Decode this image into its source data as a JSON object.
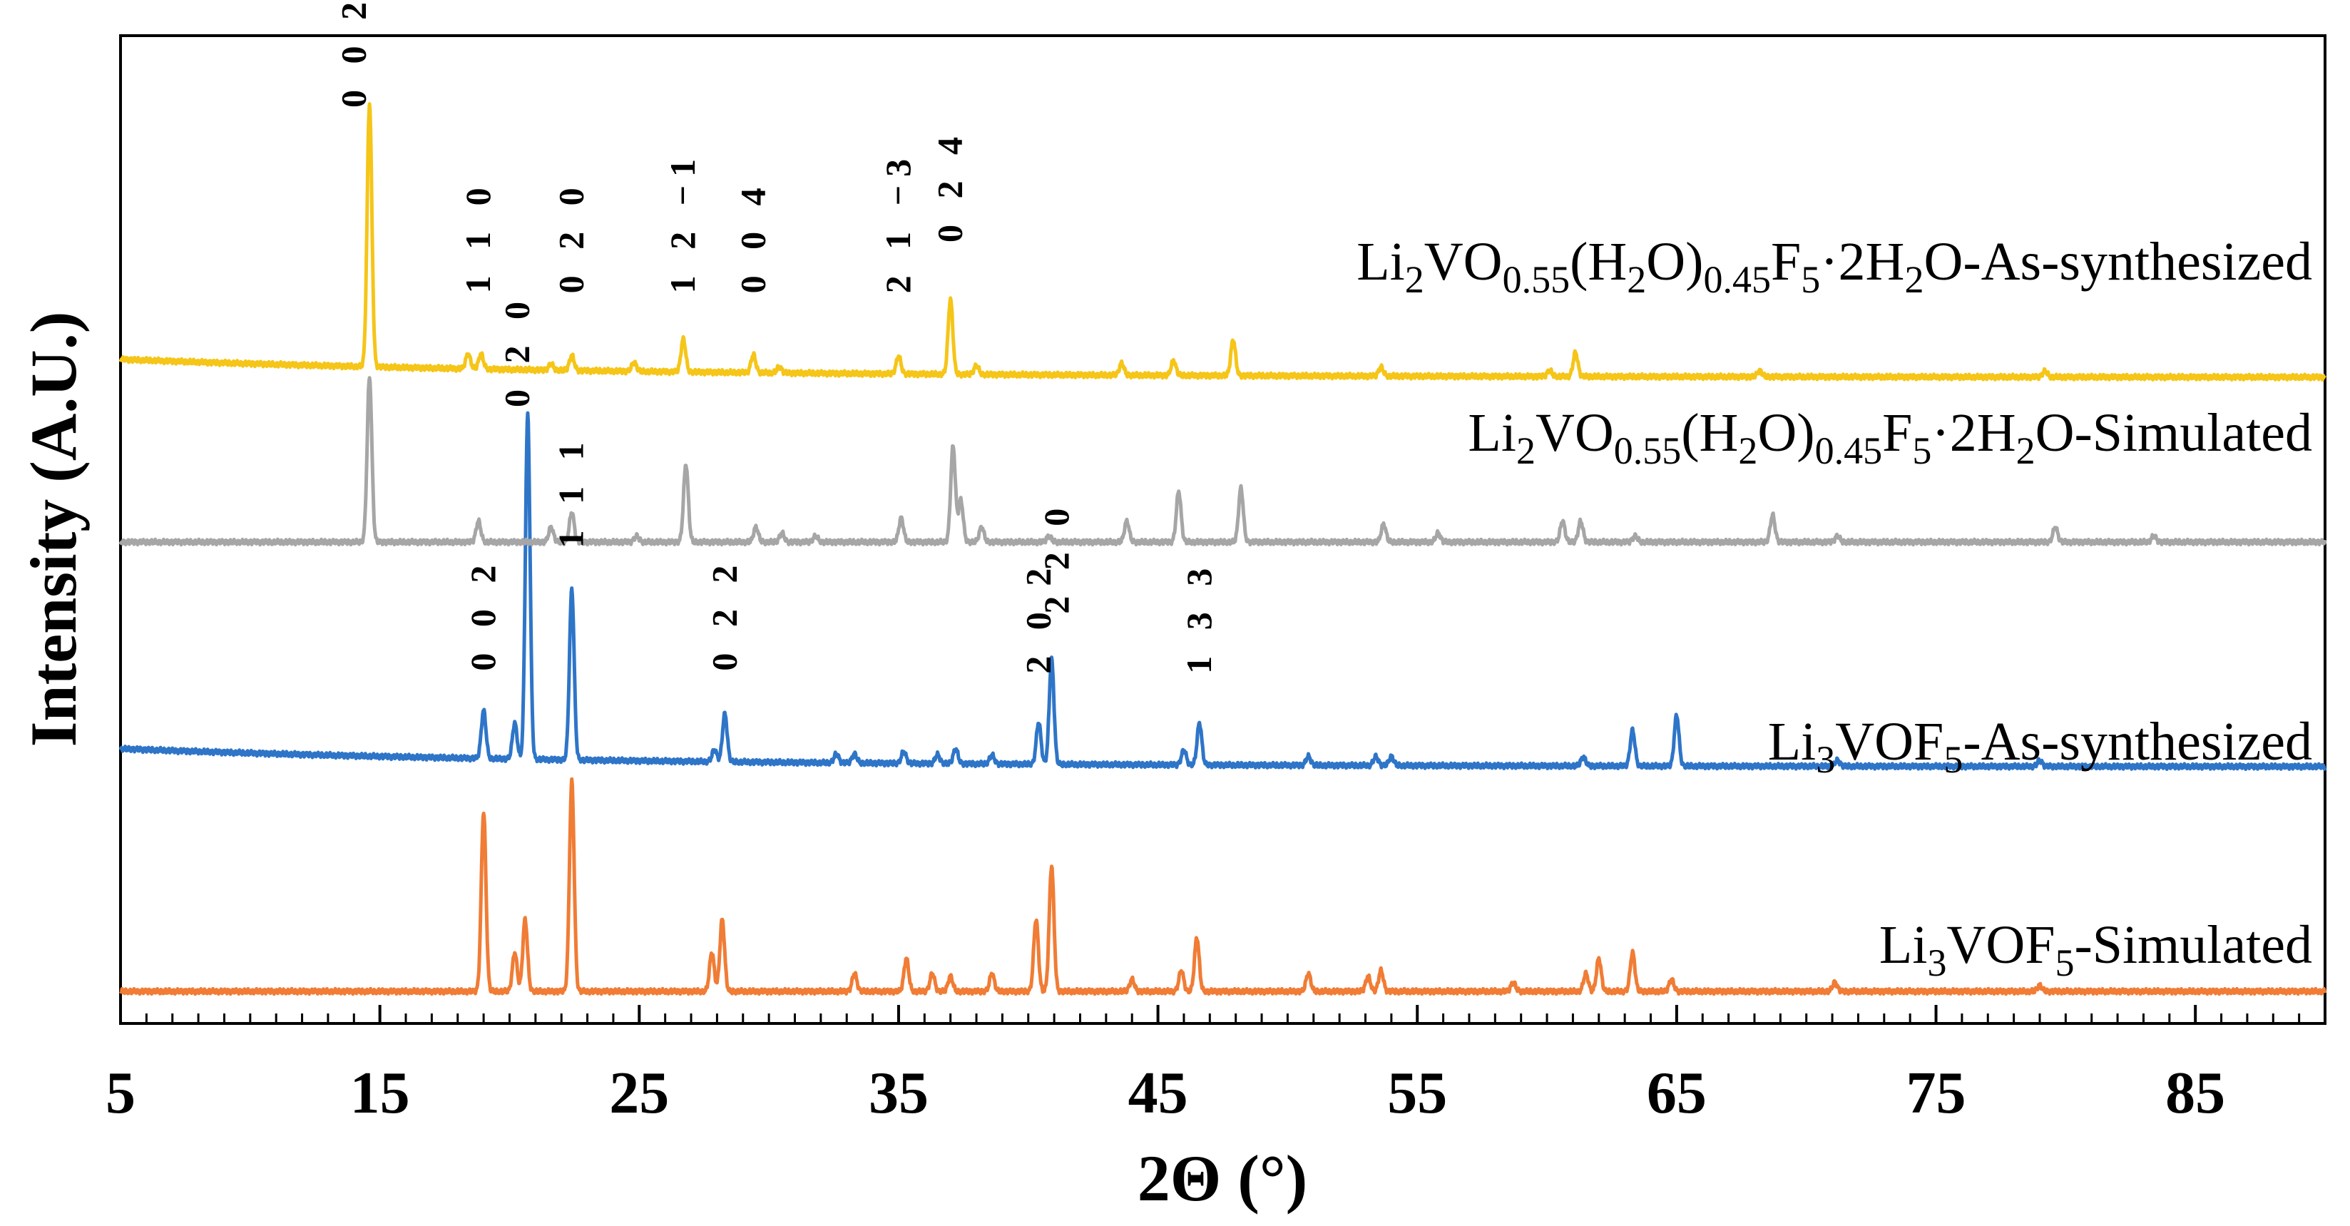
{
  "chart_data": {
    "type": "line",
    "title": "",
    "xlabel": "2Θ (°)",
    "ylabel": "Intensity (A.U.)",
    "xlim": [
      5,
      90
    ],
    "x_ticks": [
      "5",
      "15",
      "25",
      "35",
      "45",
      "55",
      "65",
      "75",
      "85"
    ],
    "legend": "inline labels at right",
    "series": [
      {
        "name": "Li3VOF5-Simulated",
        "label_parts": [
          "Li",
          "3",
          "VOF",
          "5",
          "-Simulated"
        ],
        "color": "#f07c35",
        "offset": 0.0,
        "peaks": [
          [
            19.0,
            0.6
          ],
          [
            20.2,
            0.13
          ],
          [
            20.6,
            0.24
          ],
          [
            22.4,
            0.7
          ],
          [
            27.8,
            0.13
          ],
          [
            28.2,
            0.24
          ],
          [
            33.3,
            0.06
          ],
          [
            35.3,
            0.11
          ],
          [
            36.3,
            0.06
          ],
          [
            37.0,
            0.05
          ],
          [
            38.6,
            0.06
          ],
          [
            40.3,
            0.24
          ],
          [
            40.9,
            0.42
          ],
          [
            44.0,
            0.04
          ],
          [
            45.9,
            0.07
          ],
          [
            46.5,
            0.18
          ],
          [
            50.8,
            0.06
          ],
          [
            53.1,
            0.05
          ],
          [
            53.6,
            0.07
          ],
          [
            58.7,
            0.03
          ],
          [
            61.5,
            0.06
          ],
          [
            62.0,
            0.11
          ],
          [
            63.3,
            0.13
          ],
          [
            64.8,
            0.04
          ],
          [
            71.1,
            0.03
          ],
          [
            79.0,
            0.02
          ]
        ]
      },
      {
        "name": "Li3VOF5-As-synthesized",
        "label_parts": [
          "Li",
          "3",
          "VOF",
          "5",
          "-As-synthesized"
        ],
        "color": "#2e75c8",
        "offset": 0.75,
        "peaks": [
          [
            19.0,
            0.16
          ],
          [
            20.2,
            0.12
          ],
          [
            20.7,
            1.15
          ],
          [
            22.4,
            0.57
          ],
          [
            27.9,
            0.04
          ],
          [
            28.3,
            0.16
          ],
          [
            32.6,
            0.03
          ],
          [
            33.3,
            0.03
          ],
          [
            35.2,
            0.04
          ],
          [
            36.5,
            0.03
          ],
          [
            37.2,
            0.05
          ],
          [
            38.6,
            0.03
          ],
          [
            40.4,
            0.14
          ],
          [
            40.9,
            0.35
          ],
          [
            46.0,
            0.05
          ],
          [
            46.6,
            0.14
          ],
          [
            50.8,
            0.03
          ],
          [
            53.4,
            0.03
          ],
          [
            54.0,
            0.03
          ],
          [
            61.4,
            0.03
          ],
          [
            63.3,
            0.12
          ],
          [
            65.0,
            0.17
          ],
          [
            71.2,
            0.02
          ],
          [
            79.0,
            0.02
          ]
        ],
        "baseline_start": 0.06,
        "annotations": [
          {
            "hkl": "0 0 2",
            "x": 19.0,
            "y": 0.32
          },
          {
            "hkl": "0 2 0",
            "x": 20.3,
            "y": 1.2
          },
          {
            "hkl": "1 1 1",
            "x": 22.4,
            "y": 0.73
          },
          {
            "hkl": "0 2 2",
            "x": 28.3,
            "y": 0.32
          },
          {
            "hkl": "2 0 2",
            "x": 40.4,
            "y": 0.31
          },
          {
            "hkl": "2 2 0",
            "x": 41.1,
            "y": 0.51
          },
          {
            "hkl": "1 3 3",
            "x": 46.6,
            "y": 0.31
          }
        ]
      },
      {
        "name": "Li2VO0.55(H2O)0.45F5·2H2O-Simulated",
        "label_parts": [
          "Li",
          "2",
          "VO",
          "0.55",
          "(H",
          "2",
          "O)",
          "0.45",
          "F",
          "5",
          "·2H",
          "2",
          "O-Simulated"
        ],
        "color": "#a6a6a6",
        "offset": 1.5,
        "peaks": [
          [
            14.6,
            0.55
          ],
          [
            18.8,
            0.07
          ],
          [
            21.6,
            0.05
          ],
          [
            22.4,
            0.1
          ],
          [
            24.9,
            0.02
          ],
          [
            26.8,
            0.26
          ],
          [
            29.5,
            0.05
          ],
          [
            30.5,
            0.03
          ],
          [
            31.8,
            0.02
          ],
          [
            35.1,
            0.08
          ],
          [
            37.1,
            0.32
          ],
          [
            37.4,
            0.14
          ],
          [
            38.2,
            0.05
          ],
          [
            40.8,
            0.02
          ],
          [
            43.8,
            0.07
          ],
          [
            45.8,
            0.17
          ],
          [
            48.2,
            0.18
          ],
          [
            53.7,
            0.06
          ],
          [
            55.8,
            0.03
          ],
          [
            60.6,
            0.07
          ],
          [
            61.3,
            0.07
          ],
          [
            63.4,
            0.02
          ],
          [
            68.7,
            0.09
          ],
          [
            71.2,
            0.02
          ],
          [
            79.6,
            0.05
          ],
          [
            83.4,
            0.02
          ]
        ]
      },
      {
        "name": "Li2VO0.55(H2O)0.45F5·2H2O-As-synthesized",
        "label_parts": [
          "Li",
          "2",
          "VO",
          "0.55",
          "(H",
          "2",
          "O)",
          "0.45",
          "F",
          "5",
          "·2H",
          "2",
          "O-As-synthesized"
        ],
        "color": "#f5c518",
        "offset": 2.05,
        "peaks": [
          [
            14.6,
            0.88
          ],
          [
            18.4,
            0.05
          ],
          [
            18.9,
            0.05
          ],
          [
            21.6,
            0.02
          ],
          [
            22.4,
            0.05
          ],
          [
            24.8,
            0.03
          ],
          [
            26.7,
            0.11
          ],
          [
            29.4,
            0.06
          ],
          [
            30.4,
            0.02
          ],
          [
            35.0,
            0.06
          ],
          [
            37.0,
            0.25
          ],
          [
            38.0,
            0.03
          ],
          [
            43.6,
            0.04
          ],
          [
            45.6,
            0.05
          ],
          [
            47.9,
            0.12
          ],
          [
            53.6,
            0.03
          ],
          [
            60.1,
            0.02
          ],
          [
            61.1,
            0.08
          ],
          [
            68.2,
            0.02
          ],
          [
            79.2,
            0.02
          ]
        ],
        "baseline_start": 0.06,
        "annotations": [
          {
            "hkl": "0 0 2",
            "x": 14.0,
            "y": 0.9
          },
          {
            "hkl": "1 1 0",
            "x": 18.8,
            "y": 0.28
          },
          {
            "hkl": "0 2 0",
            "x": 22.4,
            "y": 0.28
          },
          {
            "hkl": "1 2 −1",
            "x": 26.7,
            "y": 0.28
          },
          {
            "hkl": "0 0 4",
            "x": 29.4,
            "y": 0.28
          },
          {
            "hkl": "2 1 −3",
            "x": 35.0,
            "y": 0.28
          },
          {
            "hkl": "0 2 4",
            "x": 37.0,
            "y": 0.45
          }
        ]
      }
    ]
  }
}
